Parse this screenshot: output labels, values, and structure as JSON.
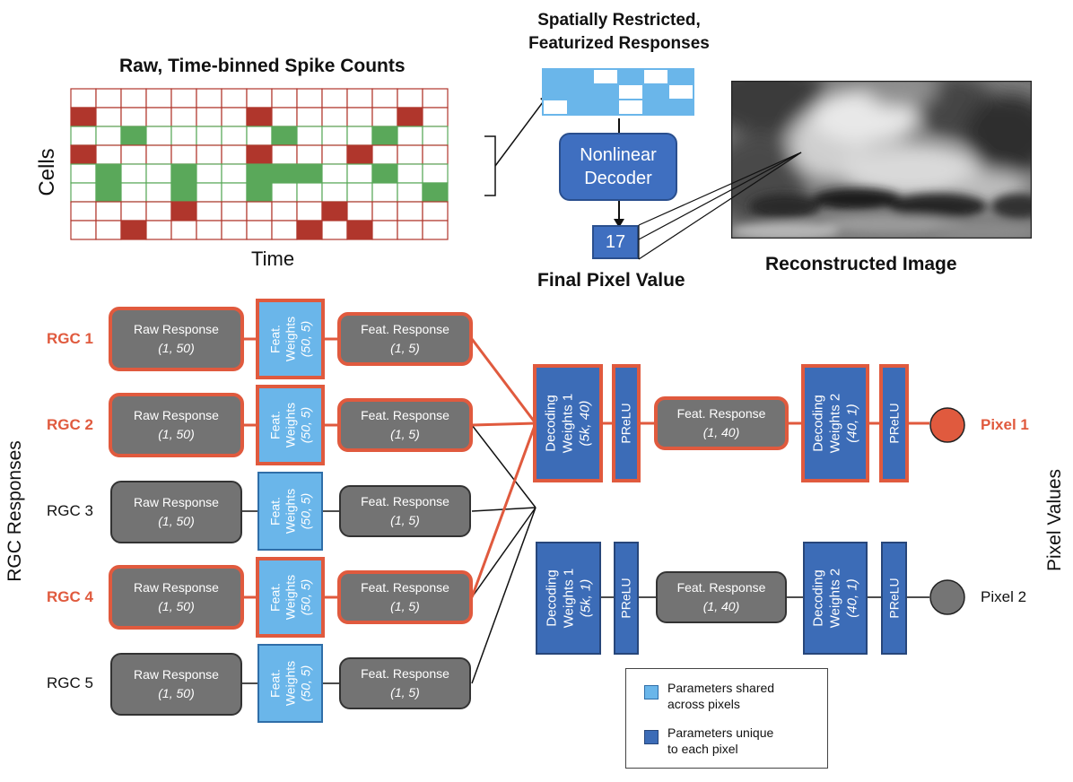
{
  "top": {
    "raw_title": "Raw, Time-binned Spike Counts",
    "cells_label": "Cells",
    "time_label": "Time",
    "spatial_title_line1": "Spatially Restricted,",
    "spatial_title_line2": "Featurized Responses",
    "decoder_line1": "Nonlinear",
    "decoder_line2": "Decoder",
    "pixel_value": "17",
    "final_pixel_label": "Final Pixel Value",
    "recon_label": "Reconstructed Image"
  },
  "grid": {
    "rows": 8,
    "cols": 15,
    "row_colors": [
      "red",
      "red",
      "green",
      "red",
      "green",
      "green",
      "red",
      "red"
    ],
    "filled": [
      [
        1,
        1
      ],
      [
        1,
        8
      ],
      [
        1,
        14
      ],
      [
        2,
        3
      ],
      [
        2,
        9
      ],
      [
        2,
        13
      ],
      [
        3,
        1
      ],
      [
        3,
        8
      ],
      [
        3,
        12
      ],
      [
        4,
        2
      ],
      [
        4,
        5
      ],
      [
        4,
        8
      ],
      [
        4,
        9
      ],
      [
        4,
        10
      ],
      [
        4,
        13
      ],
      [
        5,
        2
      ],
      [
        5,
        5
      ],
      [
        5,
        8
      ],
      [
        5,
        15
      ],
      [
        6,
        5
      ],
      [
        6,
        11
      ],
      [
        7,
        3
      ],
      [
        7,
        10
      ],
      [
        7,
        12
      ]
    ]
  },
  "network": {
    "side_label_left": "RGC Responses",
    "side_label_right": "Pixel Values",
    "raw_label": "Raw Response",
    "raw_dim": "(1, 50)",
    "fw_label": "Feat.",
    "fw_label2": "Weights",
    "fw_dim": "(50, 5)",
    "feat_label": "Feat. Response",
    "feat_dim": "(1, 5)",
    "rgcs": [
      {
        "label": "RGC 1",
        "active": true
      },
      {
        "label": "RGC 2",
        "active": true
      },
      {
        "label": "RGC 3",
        "active": false
      },
      {
        "label": "RGC 4",
        "active": true
      },
      {
        "label": "RGC 5",
        "active": false
      }
    ],
    "dw1_label": "Decoding",
    "dw1_label2": "Weights 1",
    "dw1_dim_p1": "(5k, 40)",
    "dw1_dim_p2": "(5k, 1)",
    "prelu": "PReLU",
    "feat40_label": "Feat. Response",
    "feat40_dim": "(1, 40)",
    "dw2_label": "Decoding",
    "dw2_label2": "Weights 2",
    "dw2_dim": "(40, 1)",
    "pixel1": "Pixel 1",
    "pixel2": "Pixel 2"
  },
  "legend": {
    "shared_line1": "Parameters shared",
    "shared_line2": "across pixels",
    "unique_line1": "Parameters unique",
    "unique_line2": "to each pixel"
  },
  "colors": {
    "red": "#e05a3e",
    "light_blue": "#6ab6ea",
    "dark_blue": "#3c6cb7",
    "gray": "#737373",
    "grid_red": "#b0362c",
    "grid_green": "#5aa85a"
  }
}
